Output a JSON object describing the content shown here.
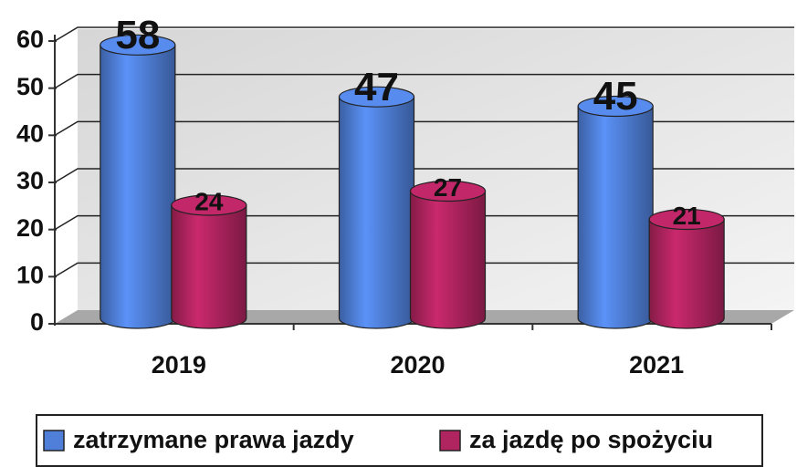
{
  "chart_data": {
    "type": "bar3d",
    "categories": [
      "2019",
      "2020",
      "2021"
    ],
    "series": [
      {
        "name": "zatrzymane prawa jazdy",
        "color": "#4f7fd8",
        "values": [
          58,
          47,
          45
        ]
      },
      {
        "name": "za jazdę po spożyciu",
        "color": "#b0245f",
        "values": [
          24,
          27,
          21
        ]
      }
    ],
    "ylim": [
      0,
      60
    ],
    "yticks": [
      0,
      10,
      20,
      30,
      40,
      50,
      60
    ],
    "grid": true,
    "legend": "bottom"
  }
}
